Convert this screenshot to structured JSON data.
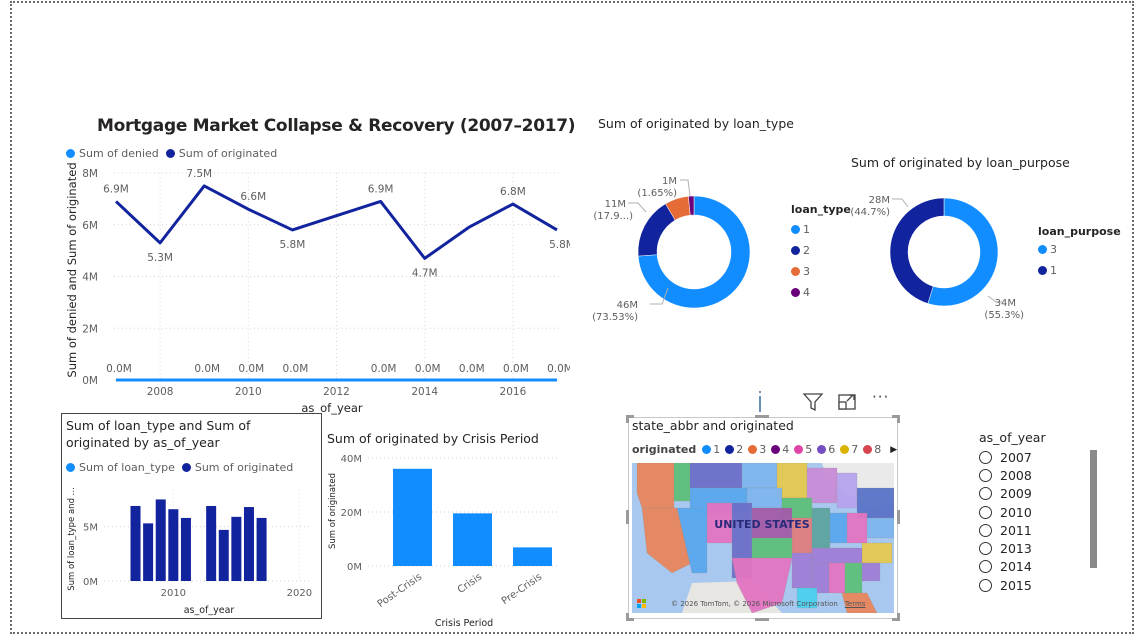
{
  "colors": {
    "light_blue": "#118DFF",
    "dark_blue": "#12239E",
    "orange": "#E66C37",
    "purple": "#6B007B",
    "pink": "#E044A7",
    "violet": "#744EC2",
    "yellow": "#D9B300",
    "red": "#D64550"
  },
  "line_chart": {
    "title": "Mortgage Market Collapse & Recovery (2007–2017)",
    "legend": [
      {
        "label": "Sum of denied",
        "color": "#118DFF"
      },
      {
        "label": "Sum of originated",
        "color": "#12239E"
      }
    ],
    "ylabel": "Sum of denied and Sum of originated",
    "xlabel": "as_of_year"
  },
  "small_bar": {
    "title_line1": "Sum of loan_type and Sum of",
    "title_line2": "originated by as_of_year",
    "legend": [
      {
        "label": "Sum of loan_type",
        "color": "#118DFF"
      },
      {
        "label": "Sum of originated",
        "color": "#12239E"
      }
    ],
    "ylabel": "Sum of loan_type and ...",
    "xlabel": "as_of_year"
  },
  "crisis_bar": {
    "title": "Sum of originated by Crisis Period",
    "ylabel": "Sum of originated",
    "xlabel": "Crisis Period"
  },
  "donut_type": {
    "title": "Sum of originated by loan_type",
    "legend_title": "loan_type"
  },
  "donut_purpose": {
    "title": "Sum of originated by loan_purpose",
    "legend_title": "loan_purpose"
  },
  "map": {
    "title": "state_abbr and originated",
    "legend_title": "originated",
    "legend_items": [
      {
        "label": "1",
        "color": "#118DFF"
      },
      {
        "label": "2",
        "color": "#12239E"
      },
      {
        "label": "3",
        "color": "#E66C37"
      },
      {
        "label": "4",
        "color": "#6B007B"
      },
      {
        "label": "5",
        "color": "#E044A7"
      },
      {
        "label": "6",
        "color": "#744EC2"
      },
      {
        "label": "7",
        "color": "#D9B300"
      },
      {
        "label": "8",
        "color": "#D64550"
      }
    ],
    "country_label": "UNITED STATES",
    "attribution": "© 2026 TomTom, © 2026 Microsoft Corporation",
    "terms": "Terms",
    "brand": "Microsoft Bing",
    "header_icons": [
      "info-icon",
      "filter-icon",
      "focus-mode-icon",
      "more-options-icon"
    ]
  },
  "slicer": {
    "title": "as_of_year",
    "options": [
      "2007",
      "2008",
      "2009",
      "2010",
      "2011",
      "2013",
      "2014",
      "2015"
    ]
  },
  "chart_data": [
    {
      "type": "line",
      "title": "Mortgage Market Collapse & Recovery (2007–2017)",
      "xlabel": "as_of_year",
      "ylabel": "Sum of denied and Sum of originated",
      "x": [
        2007,
        2008,
        2009,
        2010,
        2011,
        2013,
        2014,
        2015,
        2016,
        2017
      ],
      "series": [
        {
          "name": "Sum of originated",
          "color": "#12239E",
          "values": [
            6.9,
            5.3,
            7.5,
            6.6,
            5.8,
            6.9,
            4.7,
            5.9,
            6.8,
            5.8
          ],
          "labels": [
            "6.9M",
            "5.3M",
            "7.5M",
            "6.6M",
            "5.8M",
            "6.9M",
            "4.7M",
            "",
            "6.8M",
            "5.8M"
          ]
        },
        {
          "name": "Sum of denied",
          "color": "#118DFF",
          "values": [
            0,
            0,
            0,
            0,
            0,
            0,
            0,
            0,
            0,
            0
          ],
          "labels": [
            "0.0M",
            "",
            "0.0M",
            "0.0M",
            "0.0M",
            "0.0M",
            "0.0M",
            "0.0M",
            "0.0M",
            "0.0M"
          ]
        }
      ],
      "units": "M",
      "ylim": [
        0,
        8
      ],
      "yticks": [
        "0M",
        "2M",
        "4M",
        "6M",
        "8M"
      ],
      "xticks": [
        "2008",
        "2010",
        "2012",
        "2014",
        "2016"
      ],
      "xlim": [
        2007,
        2017
      ],
      "grid": true,
      "legend": "top-left"
    },
    {
      "type": "bar",
      "title": "Sum of loan_type and Sum of originated by as_of_year",
      "xlabel": "as_of_year",
      "ylabel": "Sum of loan_type and ...",
      "x": [
        2007,
        2008,
        2009,
        2010,
        2011,
        2013,
        2014,
        2015,
        2016,
        2017
      ],
      "series": [
        {
          "name": "Sum of originated",
          "color": "#12239E",
          "values": [
            6.9,
            5.3,
            7.5,
            6.6,
            5.8,
            6.9,
            4.7,
            5.9,
            6.8,
            5.8
          ]
        }
      ],
      "units": "M",
      "ylim": [
        0,
        8
      ],
      "yticks": [
        "0M",
        "5M"
      ],
      "xticks": [
        "2010",
        "2020"
      ],
      "xlim": [
        2004.5,
        2021
      ],
      "grid": true,
      "legend": "top-left"
    },
    {
      "type": "bar",
      "title": "Sum of originated by Crisis Period",
      "xlabel": "Crisis Period",
      "ylabel": "Sum of originated",
      "categories": [
        "Post-Crisis",
        "Crisis",
        "Pre-Crisis"
      ],
      "values": [
        36,
        19.5,
        6.9
      ],
      "color": "#118DFF",
      "units": "M",
      "ylim": [
        0,
        40
      ],
      "yticks": [
        "0M",
        "20M",
        "40M"
      ],
      "grid": true
    },
    {
      "type": "pie",
      "donut": true,
      "title": "Sum of originated by loan_type",
      "legend_title": "loan_type",
      "slices": [
        {
          "label": "1",
          "value": 46,
          "percent": 73.53,
          "display": "46M",
          "pct_display": "(73.53%)",
          "color": "#118DFF"
        },
        {
          "label": "2",
          "value": 11,
          "percent": 17.9,
          "display": "11M",
          "pct_display": "(17.9...)",
          "color": "#12239E"
        },
        {
          "label": "3",
          "value": 4.3,
          "percent": 6.92,
          "display": "",
          "pct_display": "",
          "color": "#E66C37"
        },
        {
          "label": "4",
          "value": 1,
          "percent": 1.65,
          "display": "1M",
          "pct_display": "(1.65%)",
          "color": "#6B007B"
        }
      ],
      "legend": "right"
    },
    {
      "type": "pie",
      "donut": true,
      "title": "Sum of originated by loan_purpose",
      "legend_title": "loan_purpose",
      "slices": [
        {
          "label": "3",
          "value": 34,
          "percent": 55.3,
          "display": "34M",
          "pct_display": "(55.3%)",
          "color": "#118DFF"
        },
        {
          "label": "1",
          "value": 28,
          "percent": 44.7,
          "display": "28M",
          "pct_display": "(44.7%)",
          "color": "#12239E"
        }
      ],
      "legend": "right"
    }
  ]
}
